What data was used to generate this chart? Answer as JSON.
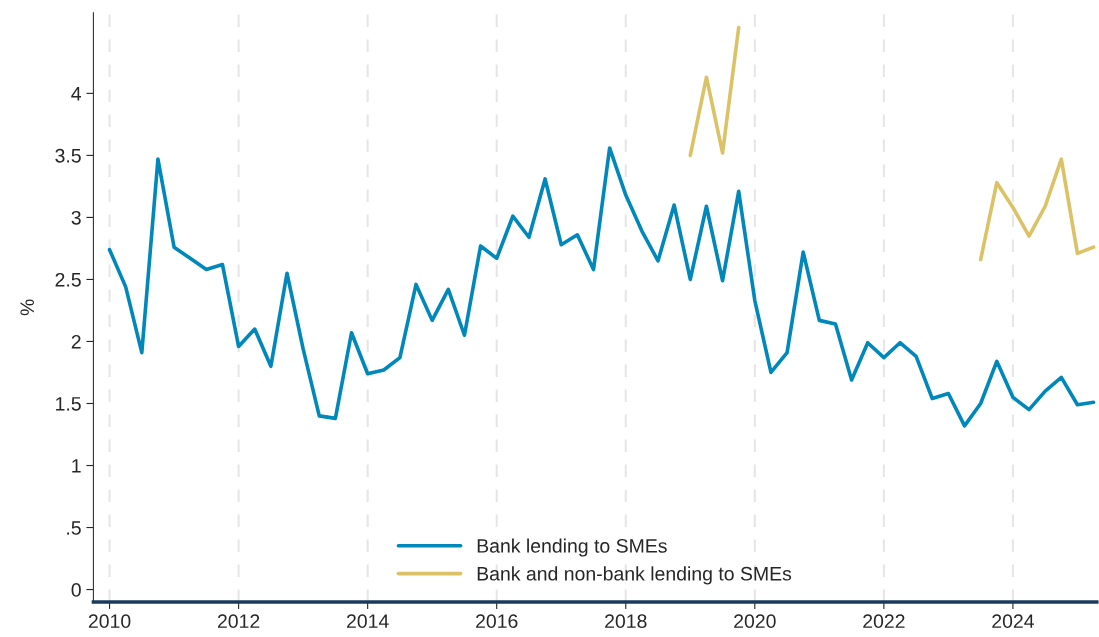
{
  "chart_data": {
    "type": "line",
    "ylabel": "%",
    "x": [
      2010.0,
      2010.25,
      2010.5,
      2010.75,
      2011.0,
      2011.25,
      2011.5,
      2011.75,
      2012.0,
      2012.25,
      2012.5,
      2012.75,
      2013.0,
      2013.25,
      2013.5,
      2013.75,
      2014.0,
      2014.25,
      2014.5,
      2014.75,
      2015.0,
      2015.25,
      2015.5,
      2015.75,
      2016.0,
      2016.25,
      2016.5,
      2016.75,
      2017.0,
      2017.25,
      2017.5,
      2017.75,
      2018.0,
      2018.25,
      2018.5,
      2018.75,
      2019.0,
      2019.25,
      2019.5,
      2019.75,
      2020.0,
      2020.25,
      2020.5,
      2020.75,
      2021.0,
      2021.25,
      2021.5,
      2021.75,
      2022.0,
      2022.25,
      2022.5,
      2022.75,
      2023.0,
      2023.25,
      2023.5,
      2023.75,
      2024.0,
      2024.25,
      2024.5,
      2024.75,
      2025.0,
      2025.25
    ],
    "series": [
      {
        "name": "Bank lending to SMEs",
        "color": "#0088bb",
        "values": [
          2.74,
          2.44,
          1.91,
          3.47,
          2.76,
          2.67,
          2.58,
          2.62,
          1.96,
          2.1,
          1.8,
          2.55,
          1.94,
          1.4,
          1.38,
          2.07,
          1.74,
          1.77,
          1.87,
          2.46,
          2.17,
          2.42,
          2.05,
          2.77,
          2.67,
          3.01,
          2.84,
          3.31,
          2.78,
          2.86,
          2.58,
          3.56,
          3.18,
          2.89,
          2.65,
          3.1,
          2.5,
          3.09,
          2.49,
          3.21,
          2.33,
          1.75,
          1.91,
          2.72,
          2.17,
          2.14,
          1.69,
          1.99,
          1.87,
          1.99,
          1.88,
          1.54,
          1.58,
          1.32,
          1.5,
          1.84,
          1.55,
          1.45,
          1.6,
          1.71,
          1.49,
          1.51
        ]
      },
      {
        "name": "Bank and non-bank lending to SMEs",
        "color": "#dcc266",
        "values": [
          null,
          null,
          null,
          null,
          null,
          null,
          null,
          null,
          null,
          null,
          null,
          null,
          null,
          null,
          null,
          null,
          null,
          null,
          null,
          null,
          null,
          null,
          null,
          null,
          null,
          null,
          null,
          null,
          null,
          null,
          null,
          null,
          null,
          null,
          null,
          null,
          3.5,
          4.13,
          3.52,
          4.53,
          null,
          null,
          null,
          null,
          null,
          null,
          null,
          null,
          null,
          null,
          null,
          null,
          null,
          null,
          2.66,
          3.28,
          3.08,
          2.85,
          3.09,
          3.47,
          2.71,
          2.76
        ]
      }
    ],
    "xlim": [
      2009.75,
      2025.3
    ],
    "xticks": [
      2010,
      2012,
      2014,
      2016,
      2018,
      2020,
      2022,
      2024
    ],
    "ylim": [
      -0.1,
      4.65
    ],
    "yticks": [
      0,
      {
        "value": 0.5,
        "label": ".5"
      },
      1,
      1.5,
      2,
      2.5,
      3,
      3.5,
      4
    ],
    "grid": "x",
    "legend": "bottom",
    "line_style": "solid",
    "marker": "none"
  }
}
